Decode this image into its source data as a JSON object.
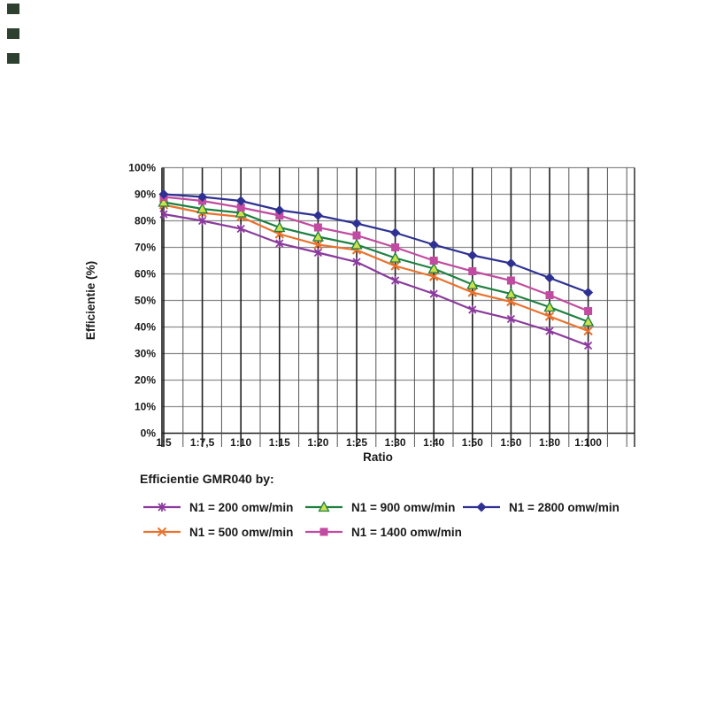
{
  "page": {
    "background": "#ffffff",
    "decorations": {
      "corner_mark_count": 3,
      "corner_mark_color": "#2e4030"
    }
  },
  "chart_data": {
    "type": "line",
    "title": "",
    "xlabel": "Ratio",
    "ylabel": "Efficientie (%)",
    "ylim": [
      0,
      100
    ],
    "ytick_step": 10,
    "ytick_labels": [
      "0%",
      "10%",
      "20%",
      "30%",
      "40%",
      "50%",
      "60%",
      "70%",
      "80%",
      "90%",
      "100%"
    ],
    "grid": "both",
    "categories": [
      "1:5",
      "1:7,5",
      "1:10",
      "1:15",
      "1:20",
      "1:25",
      "1:30",
      "1:40",
      "1:50",
      "1:60",
      "1:80",
      "1:100"
    ],
    "series": [
      {
        "name": "N1 = 200 omw/min",
        "color": "#8a3a9c",
        "marker": "asterisk",
        "values": [
          82.5,
          80,
          77,
          71.5,
          68,
          64.5,
          57.5,
          52.5,
          46.5,
          43,
          38.5,
          33
        ]
      },
      {
        "name": "N1 = 500 omw/min",
        "color": "#e8722d",
        "marker": "x",
        "values": [
          86,
          83,
          81.5,
          75,
          71,
          69,
          63,
          59,
          53,
          49.5,
          44,
          38.5
        ]
      },
      {
        "name": "N1 = 900 omw/min",
        "color": "#1e8040",
        "marker": "triangle",
        "marker_fill": "#cde04e",
        "values": [
          87,
          84.5,
          83,
          77.5,
          74,
          71,
          66,
          62,
          56,
          52.5,
          47.5,
          42
        ]
      },
      {
        "name": "N1 = 1400 omw/min",
        "color": "#c04ba0",
        "marker": "square",
        "values": [
          89,
          87.5,
          85,
          82,
          77.5,
          74.5,
          70,
          65,
          61,
          57.5,
          52,
          46
        ]
      },
      {
        "name": "N1 = 2800 omw/min",
        "color": "#2e3192",
        "marker": "diamond",
        "values": [
          90,
          89,
          87.5,
          84,
          82,
          79,
          75.5,
          71,
          67,
          64,
          58.5,
          53
        ]
      }
    ],
    "legend": {
      "title": "Efficientie GMR040 by:",
      "position": "below",
      "rows": [
        [
          "N1 = 200 omw/min",
          "N1 = 900 omw/min",
          "N1 = 2800 omw/min"
        ],
        [
          "N1 = 500 omw/min",
          "N1 = 1400 omw/min"
        ]
      ]
    }
  }
}
